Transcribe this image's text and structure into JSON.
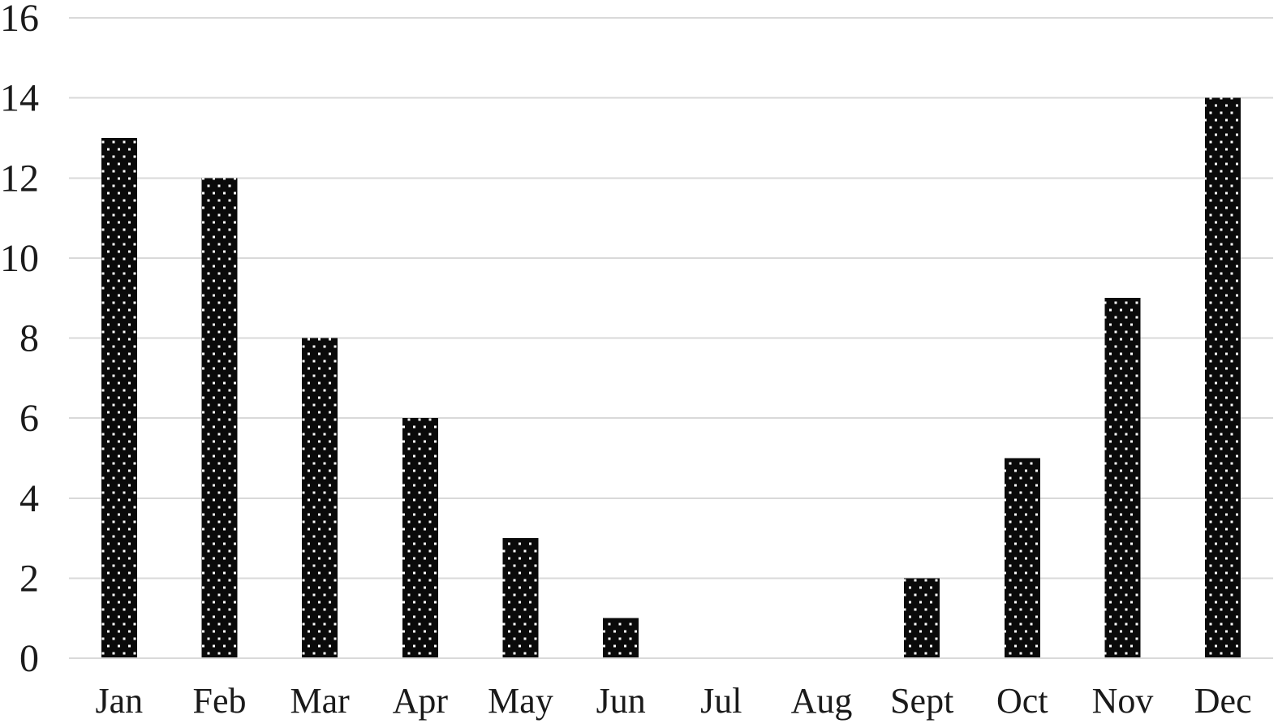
{
  "chart_data": {
    "type": "bar",
    "categories": [
      "Jan",
      "Feb",
      "Mar",
      "Apr",
      "May",
      "Jun",
      "Jul",
      "Aug",
      "Sept",
      "Oct",
      "Nov",
      "Dec"
    ],
    "values": [
      13,
      12,
      8,
      6,
      3,
      1,
      0,
      0,
      2,
      5,
      9,
      14
    ],
    "title": "",
    "xlabel": "",
    "ylabel": "",
    "ylim": [
      0,
      16
    ],
    "yticks": [
      0,
      2,
      4,
      6,
      8,
      10,
      12,
      14,
      16
    ],
    "ytick_labels": [
      "0",
      "2",
      "4",
      "6",
      "8",
      "10",
      "12",
      "14",
      "16"
    ],
    "grid": true,
    "legend": false,
    "bar_style": "black with white square-dot pattern fill",
    "colors": {
      "bar": "#0a0a0a",
      "bar_dot": "#ffffff",
      "gridline": "#d9d9d9",
      "text": "#1a1a1a",
      "background": "#ffffff"
    }
  }
}
